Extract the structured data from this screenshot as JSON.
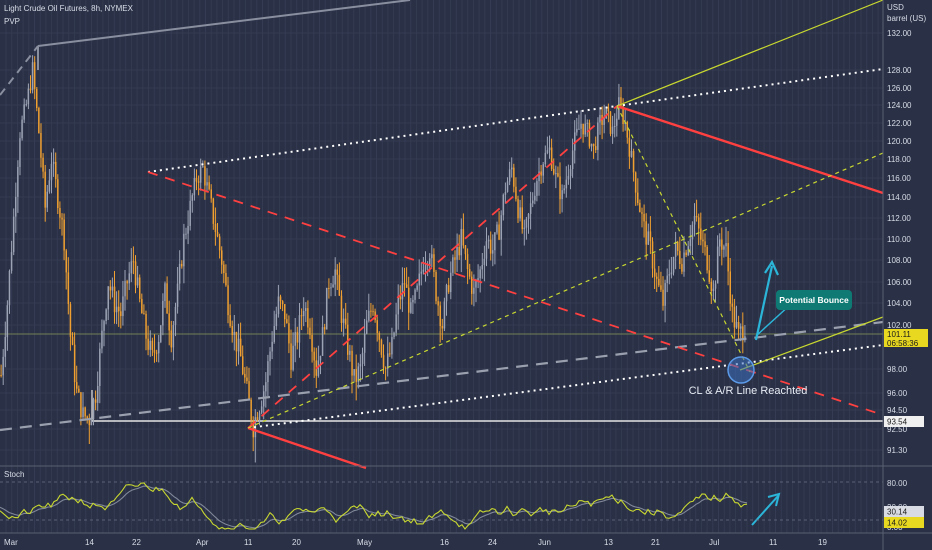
{
  "header": {
    "symbol_line": "Light Crude Oil Futures, 8h, NYMEX",
    "indicator": "PVP"
  },
  "price_axis": {
    "currency": "USD",
    "unit": "barrel (US)",
    "ticks": [
      "132.00",
      "128.00",
      "126.00",
      "124.00",
      "122.00",
      "120.00",
      "118.00",
      "116.00",
      "114.00",
      "112.00",
      "110.00",
      "108.00",
      "106.00",
      "104.00",
      "102.00",
      "98.00",
      "96.00",
      "94.50",
      "92.50",
      "91.30"
    ],
    "last_price": "101.11",
    "countdown": "06:58:36",
    "support_label": "93.54"
  },
  "time_axis": {
    "labels": [
      "Mar",
      "14",
      "22",
      "Apr",
      "11",
      "20",
      "May",
      "16",
      "24",
      "Jun",
      "13",
      "21",
      "Jul",
      "11",
      "19"
    ]
  },
  "annotations": {
    "callout": "Potential Bounce",
    "note": "CL & A/R Line Reachted"
  },
  "stoch": {
    "title": "Stoch",
    "ticks": [
      "80.00",
      "20.00",
      "0.00"
    ],
    "k_value": "30.14",
    "d_value": "14.02"
  },
  "colors": {
    "background": "#2a3045",
    "candle_up": "#9ca3b5",
    "candle_down": "#f0a030",
    "trend_red": "#ff4040",
    "trend_white": "#ffffff",
    "trend_yellow": "#c8d830",
    "arrow": "#2bb5d8",
    "callout_bg": "#0f7a74",
    "k_line": "#c8d830",
    "d_line": "#7f8799"
  },
  "chart_data": {
    "type": "candlestick",
    "title": "Light Crude Oil Futures, 8h, NYMEX",
    "ylim": [
      90.5,
      134
    ],
    "closes": [
      97.5,
      104,
      112,
      121,
      124,
      128,
      121,
      113,
      118,
      114,
      110,
      101,
      96,
      94,
      93.5,
      96,
      101,
      106,
      104,
      103,
      106,
      108,
      104,
      101,
      99,
      101,
      105,
      101,
      105,
      110,
      113,
      116,
      117,
      114,
      111,
      108,
      104,
      101,
      99,
      96,
      93,
      95,
      97,
      101,
      104,
      103,
      99,
      101,
      104,
      102,
      98,
      101,
      106,
      107,
      103,
      100,
      97,
      98,
      102,
      104,
      101,
      98,
      100,
      104,
      106,
      103,
      105,
      108,
      109,
      105,
      102,
      106,
      108,
      110,
      107,
      105,
      107,
      110,
      109,
      111,
      115,
      117,
      113,
      110,
      113,
      116,
      118,
      119,
      116,
      114,
      117,
      120,
      122,
      121,
      119,
      122,
      123,
      121,
      124,
      122,
      118,
      114,
      111,
      109,
      106,
      104,
      107,
      109,
      108,
      110,
      112,
      110,
      108,
      105,
      110,
      109,
      103,
      101,
      102
    ]
  }
}
